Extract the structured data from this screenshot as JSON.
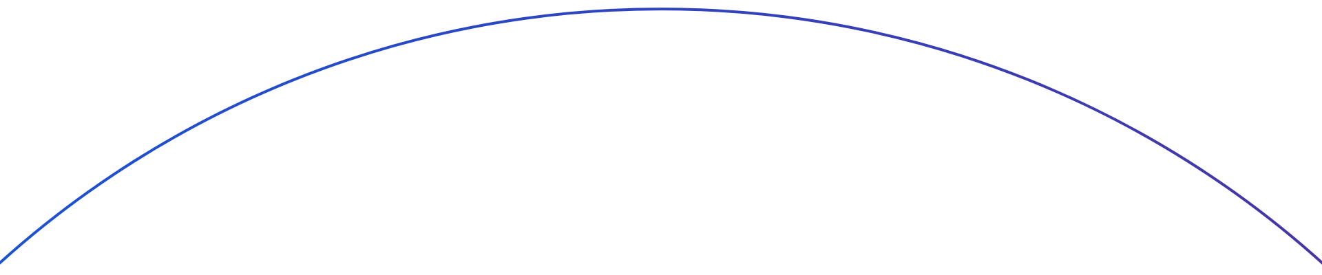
{
  "arc": {
    "color_start": "#1a52d4",
    "color_end": "#4535a8"
  }
}
